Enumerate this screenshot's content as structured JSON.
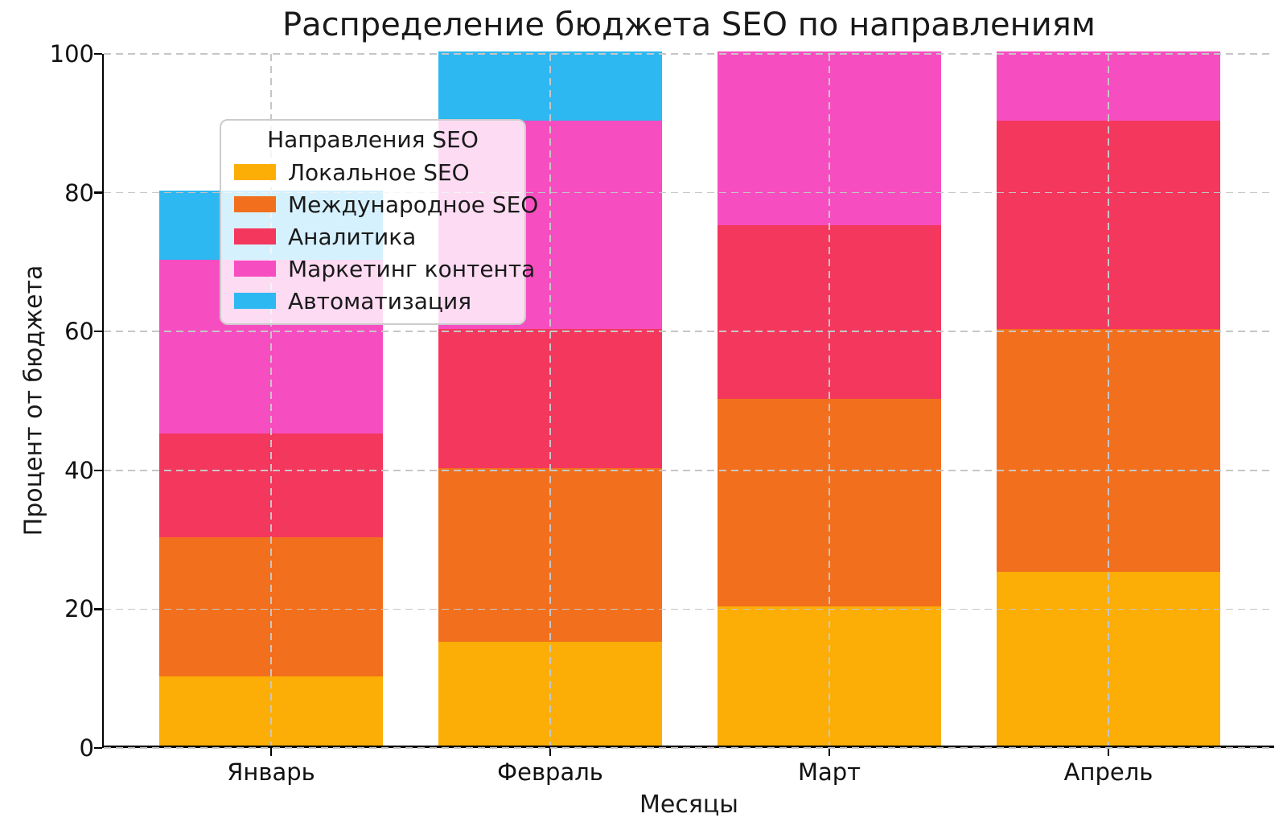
{
  "chart_data": {
    "type": "bar",
    "stacked": true,
    "title": "Распределение бюджета SEO по направлениям",
    "xlabel": "Месяцы",
    "ylabel": "Процент от бюджета",
    "legend_title": "Направления SEO",
    "legend_position": "upper left",
    "categories": [
      "Январь",
      "Февраль",
      "Март",
      "Апрель"
    ],
    "series": [
      {
        "name": "Локальное SEO",
        "color": "#FCAE06",
        "values": [
          10,
          15,
          20,
          25
        ]
      },
      {
        "name": "Международное SEO",
        "color": "#F2701D",
        "values": [
          20,
          25,
          30,
          35
        ]
      },
      {
        "name": "Аналитика",
        "color": "#F4375D",
        "values": [
          15,
          20,
          25,
          30
        ]
      },
      {
        "name": "Маркетинг контента",
        "color": "#F64EC1",
        "values": [
          25,
          30,
          25,
          10
        ]
      },
      {
        "name": "Автоматизация",
        "color": "#2EB8F2",
        "values": [
          10,
          10,
          0,
          0
        ]
      }
    ],
    "stack_totals": [
      80,
      100,
      100,
      100
    ],
    "ylim": [
      0,
      100
    ],
    "yticks": [
      0,
      20,
      40,
      60,
      80,
      100
    ],
    "grid": true,
    "grid_axis": "both",
    "grid_style": "dashed"
  }
}
